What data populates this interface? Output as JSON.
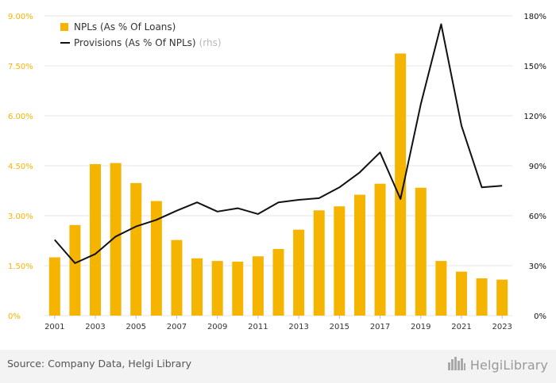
{
  "chart_data": {
    "type": "bar",
    "categories": [
      "2001",
      "2002",
      "2003",
      "2004",
      "2005",
      "2006",
      "2007",
      "2008",
      "2009",
      "2010",
      "2011",
      "2012",
      "2013",
      "2014",
      "2015",
      "2016",
      "2017",
      "2018",
      "2019",
      "2020",
      "2021",
      "2022",
      "2023"
    ],
    "x_tick_labels": [
      "2001",
      "2003",
      "2005",
      "2007",
      "2009",
      "2011",
      "2013",
      "2015",
      "2017",
      "2019",
      "2021",
      "2023"
    ],
    "series": [
      {
        "name": "NPLs (As % Of Loans)",
        "type": "bar",
        "axis": "left",
        "values": [
          1.75,
          2.72,
          4.55,
          4.58,
          3.98,
          3.44,
          2.27,
          1.72,
          1.64,
          1.62,
          1.78,
          2.0,
          2.58,
          3.16,
          3.28,
          3.63,
          3.96,
          7.87,
          3.84,
          1.64,
          1.32,
          1.12,
          1.08
        ]
      },
      {
        "name": "Provisions (As % Of NPLs)",
        "type": "line",
        "axis": "right",
        "values": [
          45.5,
          31.5,
          37,
          47.5,
          53.5,
          57.5,
          63,
          68,
          62.5,
          64.5,
          61,
          68,
          69.5,
          70.5,
          77,
          86,
          98,
          70,
          127,
          175,
          114,
          77,
          78
        ]
      }
    ],
    "legend_suffix": "(rhs)",
    "left_axis": {
      "min": 0,
      "max": 9,
      "ticks": [
        0,
        1.5,
        3,
        4.5,
        6,
        7.5,
        9
      ],
      "tick_labels": [
        "0%",
        "1.50%",
        "3.00%",
        "4.50%",
        "6.00%",
        "7.50%",
        "9.00%"
      ]
    },
    "right_axis": {
      "min": 0,
      "max": 180,
      "ticks": [
        0,
        30,
        60,
        90,
        120,
        150,
        180
      ],
      "tick_labels": [
        "0%",
        "30%",
        "60%",
        "90%",
        "120%",
        "150%",
        "180%"
      ]
    },
    "grid": true,
    "legend_position": "top-left",
    "colors": {
      "bar": "#f4b400",
      "line": "#111111",
      "left_tick": "#f4b400",
      "right_tick": "#111111",
      "grid": "#e6e6e6"
    }
  },
  "footer": {
    "source": "Source: Company Data, Helgi Library",
    "brand": "HelgiLibrary",
    "brand_icon": "city-skyline-icon"
  }
}
